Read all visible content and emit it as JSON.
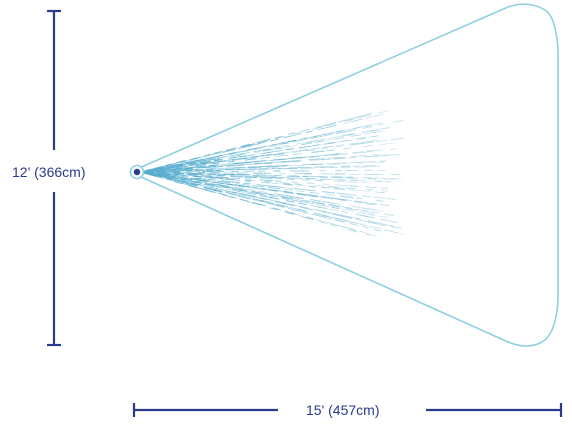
{
  "diagram": {
    "height_label": "12' (366cm)",
    "width_label": "15' (457cm)"
  },
  "colors": {
    "coverage_outline": "#8ecfe0",
    "spray": "#5aaecf",
    "dimension_line": "#2a3a8c",
    "label_text": "#2a3a8c",
    "nozzle_ring": "#8ecfe0",
    "nozzle_core": "#2a3a8c"
  },
  "icons": {
    "nozzle": "sprinkler-nozzle-icon"
  }
}
